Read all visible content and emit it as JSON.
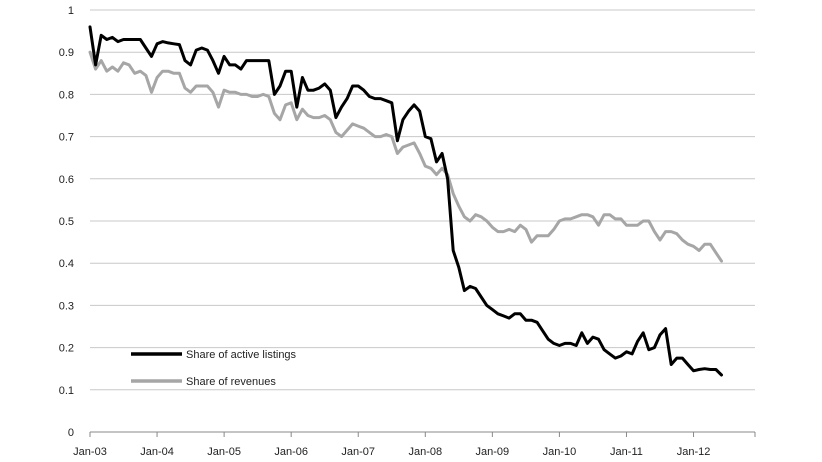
{
  "chart_data": {
    "type": "line",
    "title": "",
    "xlabel": "",
    "ylabel": "",
    "ylim": [
      0,
      1
    ],
    "yticks": [
      "0",
      "0.1",
      "0.2",
      "0.3",
      "0.4",
      "0.5",
      "0.6",
      "0.7",
      "0.8",
      "0.9",
      "1"
    ],
    "xlim": [
      0,
      119
    ],
    "xticks": [
      {
        "label": "Jan-03",
        "pos": 0
      },
      {
        "label": "Jan-04",
        "pos": 12
      },
      {
        "label": "Jan-05",
        "pos": 24
      },
      {
        "label": "Jan-06",
        "pos": 36
      },
      {
        "label": "Jan-07",
        "pos": 48
      },
      {
        "label": "Jan-08",
        "pos": 60
      },
      {
        "label": "Jan-09",
        "pos": 72
      },
      {
        "label": "Jan-10",
        "pos": 84
      },
      {
        "label": "Jan-11",
        "pos": 96
      },
      {
        "label": "Jan-12",
        "pos": 108
      }
    ],
    "grid": "horizontal",
    "legend": "bottom-left",
    "series": [
      {
        "name": "Share of active listings",
        "color": "#000000",
        "points": [
          [
            0,
            0.96
          ],
          [
            1,
            0.87
          ],
          [
            2,
            0.94
          ],
          [
            3,
            0.93
          ],
          [
            4,
            0.935
          ],
          [
            5,
            0.925
          ],
          [
            6,
            0.93
          ],
          [
            7,
            0.93
          ],
          [
            8,
            0.93
          ],
          [
            9,
            0.93
          ],
          [
            10,
            0.91
          ],
          [
            11,
            0.89
          ],
          [
            12,
            0.92
          ],
          [
            13,
            0.925
          ],
          [
            14,
            0.922
          ],
          [
            15,
            0.92
          ],
          [
            16,
            0.918
          ],
          [
            17,
            0.88
          ],
          [
            18,
            0.87
          ],
          [
            19,
            0.905
          ],
          [
            20,
            0.91
          ],
          [
            21,
            0.905
          ],
          [
            22,
            0.88
          ],
          [
            23,
            0.85
          ],
          [
            24,
            0.89
          ],
          [
            25,
            0.87
          ],
          [
            26,
            0.87
          ],
          [
            27,
            0.86
          ],
          [
            28,
            0.88
          ],
          [
            29,
            0.88
          ],
          [
            30,
            0.88
          ],
          [
            31,
            0.88
          ],
          [
            32,
            0.88
          ],
          [
            33,
            0.8
          ],
          [
            34,
            0.82
          ],
          [
            35,
            0.855
          ],
          [
            36,
            0.855
          ],
          [
            37,
            0.77
          ],
          [
            38,
            0.84
          ],
          [
            39,
            0.81
          ],
          [
            40,
            0.81
          ],
          [
            41,
            0.815
          ],
          [
            42,
            0.825
          ],
          [
            43,
            0.81
          ],
          [
            44,
            0.745
          ],
          [
            45,
            0.77
          ],
          [
            46,
            0.79
          ],
          [
            47,
            0.82
          ],
          [
            48,
            0.82
          ],
          [
            49,
            0.81
          ],
          [
            50,
            0.795
          ],
          [
            51,
            0.79
          ],
          [
            52,
            0.79
          ],
          [
            53,
            0.785
          ],
          [
            54,
            0.78
          ],
          [
            55,
            0.69
          ],
          [
            56,
            0.74
          ],
          [
            57,
            0.76
          ],
          [
            58,
            0.775
          ],
          [
            59,
            0.76
          ],
          [
            60,
            0.7
          ],
          [
            61,
            0.695
          ],
          [
            62,
            0.64
          ],
          [
            63,
            0.66
          ],
          [
            64,
            0.6
          ],
          [
            65,
            0.43
          ],
          [
            66,
            0.39
          ],
          [
            67,
            0.335
          ],
          [
            68,
            0.345
          ],
          [
            69,
            0.34
          ],
          [
            70,
            0.32
          ],
          [
            71,
            0.3
          ],
          [
            72,
            0.29
          ],
          [
            73,
            0.28
          ],
          [
            74,
            0.275
          ],
          [
            75,
            0.27
          ],
          [
            76,
            0.28
          ],
          [
            77,
            0.28
          ],
          [
            78,
            0.265
          ],
          [
            79,
            0.265
          ],
          [
            80,
            0.26
          ],
          [
            81,
            0.24
          ],
          [
            82,
            0.22
          ],
          [
            83,
            0.21
          ],
          [
            84,
            0.205
          ],
          [
            85,
            0.21
          ],
          [
            86,
            0.21
          ],
          [
            87,
            0.205
          ],
          [
            88,
            0.235
          ],
          [
            89,
            0.21
          ],
          [
            90,
            0.225
          ],
          [
            91,
            0.22
          ],
          [
            92,
            0.195
          ],
          [
            93,
            0.185
          ],
          [
            94,
            0.175
          ],
          [
            95,
            0.18
          ],
          [
            96,
            0.19
          ],
          [
            97,
            0.185
          ],
          [
            98,
            0.215
          ],
          [
            99,
            0.235
          ],
          [
            100,
            0.195
          ],
          [
            101,
            0.2
          ],
          [
            102,
            0.23
          ],
          [
            103,
            0.245
          ],
          [
            104,
            0.16
          ],
          [
            105,
            0.175
          ],
          [
            106,
            0.175
          ],
          [
            107,
            0.16
          ],
          [
            108,
            0.145
          ],
          [
            109,
            0.148
          ],
          [
            110,
            0.15
          ],
          [
            111,
            0.148
          ],
          [
            112,
            0.148
          ],
          [
            113,
            0.135
          ]
        ]
      },
      {
        "name": "Share of revenues",
        "color": "#a6a6a6",
        "points": [
          [
            0,
            0.9
          ],
          [
            1,
            0.86
          ],
          [
            2,
            0.88
          ],
          [
            3,
            0.855
          ],
          [
            4,
            0.865
          ],
          [
            5,
            0.855
          ],
          [
            6,
            0.875
          ],
          [
            7,
            0.87
          ],
          [
            8,
            0.85
          ],
          [
            9,
            0.855
          ],
          [
            10,
            0.845
          ],
          [
            11,
            0.805
          ],
          [
            12,
            0.84
          ],
          [
            13,
            0.855
          ],
          [
            14,
            0.855
          ],
          [
            15,
            0.85
          ],
          [
            16,
            0.85
          ],
          [
            17,
            0.815
          ],
          [
            18,
            0.805
          ],
          [
            19,
            0.82
          ],
          [
            20,
            0.82
          ],
          [
            21,
            0.82
          ],
          [
            22,
            0.805
          ],
          [
            23,
            0.77
          ],
          [
            24,
            0.81
          ],
          [
            25,
            0.805
          ],
          [
            26,
            0.805
          ],
          [
            27,
            0.8
          ],
          [
            28,
            0.8
          ],
          [
            29,
            0.795
          ],
          [
            30,
            0.795
          ],
          [
            31,
            0.8
          ],
          [
            32,
            0.795
          ],
          [
            33,
            0.755
          ],
          [
            34,
            0.74
          ],
          [
            35,
            0.775
          ],
          [
            36,
            0.78
          ],
          [
            37,
            0.74
          ],
          [
            38,
            0.765
          ],
          [
            39,
            0.75
          ],
          [
            40,
            0.745
          ],
          [
            41,
            0.745
          ],
          [
            42,
            0.75
          ],
          [
            43,
            0.74
          ],
          [
            44,
            0.71
          ],
          [
            45,
            0.7
          ],
          [
            46,
            0.715
          ],
          [
            47,
            0.73
          ],
          [
            48,
            0.725
          ],
          [
            49,
            0.72
          ],
          [
            50,
            0.71
          ],
          [
            51,
            0.7
          ],
          [
            52,
            0.7
          ],
          [
            53,
            0.705
          ],
          [
            54,
            0.7
          ],
          [
            55,
            0.66
          ],
          [
            56,
            0.675
          ],
          [
            57,
            0.68
          ],
          [
            58,
            0.685
          ],
          [
            59,
            0.66
          ],
          [
            60,
            0.63
          ],
          [
            61,
            0.625
          ],
          [
            62,
            0.61
          ],
          [
            63,
            0.625
          ],
          [
            64,
            0.61
          ],
          [
            65,
            0.565
          ],
          [
            66,
            0.535
          ],
          [
            67,
            0.51
          ],
          [
            68,
            0.5
          ],
          [
            69,
            0.515
          ],
          [
            70,
            0.51
          ],
          [
            71,
            0.5
          ],
          [
            72,
            0.485
          ],
          [
            73,
            0.475
          ],
          [
            74,
            0.475
          ],
          [
            75,
            0.48
          ],
          [
            76,
            0.475
          ],
          [
            77,
            0.49
          ],
          [
            78,
            0.48
          ],
          [
            79,
            0.45
          ],
          [
            80,
            0.465
          ],
          [
            81,
            0.465
          ],
          [
            82,
            0.465
          ],
          [
            83,
            0.48
          ],
          [
            84,
            0.5
          ],
          [
            85,
            0.505
          ],
          [
            86,
            0.505
          ],
          [
            87,
            0.51
          ],
          [
            88,
            0.515
          ],
          [
            89,
            0.515
          ],
          [
            90,
            0.51
          ],
          [
            91,
            0.49
          ],
          [
            92,
            0.515
          ],
          [
            93,
            0.515
          ],
          [
            94,
            0.505
          ],
          [
            95,
            0.505
          ],
          [
            96,
            0.49
          ],
          [
            97,
            0.49
          ],
          [
            98,
            0.49
          ],
          [
            99,
            0.5
          ],
          [
            100,
            0.5
          ],
          [
            101,
            0.475
          ],
          [
            102,
            0.455
          ],
          [
            103,
            0.475
          ],
          [
            104,
            0.475
          ],
          [
            105,
            0.47
          ],
          [
            106,
            0.455
          ],
          [
            107,
            0.445
          ],
          [
            108,
            0.44
          ],
          [
            109,
            0.43
          ],
          [
            110,
            0.445
          ],
          [
            111,
            0.445
          ],
          [
            112,
            0.425
          ],
          [
            113,
            0.405
          ]
        ]
      }
    ]
  }
}
